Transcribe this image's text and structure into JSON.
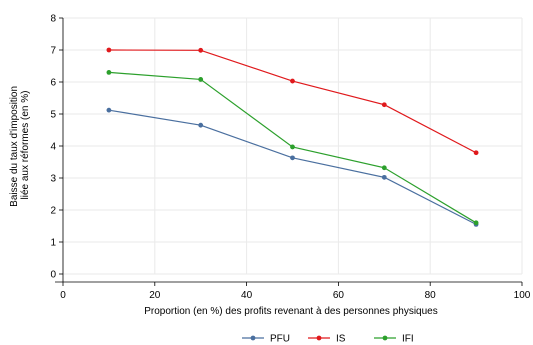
{
  "chart_data": {
    "type": "line",
    "title": "",
    "xlabel": "Proportion (en %) des profits revenant à des personnes physiques",
    "ylabel_lines": [
      "Baisse du taux d'imposition",
      "liée aux réformes (en %)"
    ],
    "x": [
      10,
      30,
      50,
      70,
      90
    ],
    "xlim": [
      0,
      100
    ],
    "ylim": [
      0,
      8
    ],
    "xticks": [
      0,
      20,
      40,
      60,
      80,
      100
    ],
    "yticks": [
      0,
      1,
      2,
      3,
      4,
      5,
      6,
      7,
      8
    ],
    "grid": true,
    "legend_position": "bottom",
    "series": [
      {
        "name": "PFU",
        "color": "#4a6f9f",
        "values": [
          5.12,
          4.65,
          3.63,
          3.02,
          1.55
        ]
      },
      {
        "name": "IS",
        "color": "#e0191c",
        "values": [
          7.0,
          6.99,
          6.03,
          5.29,
          3.79
        ]
      },
      {
        "name": "IFI",
        "color": "#2ca02c",
        "values": [
          6.3,
          6.08,
          3.97,
          3.32,
          1.6
        ]
      }
    ]
  }
}
